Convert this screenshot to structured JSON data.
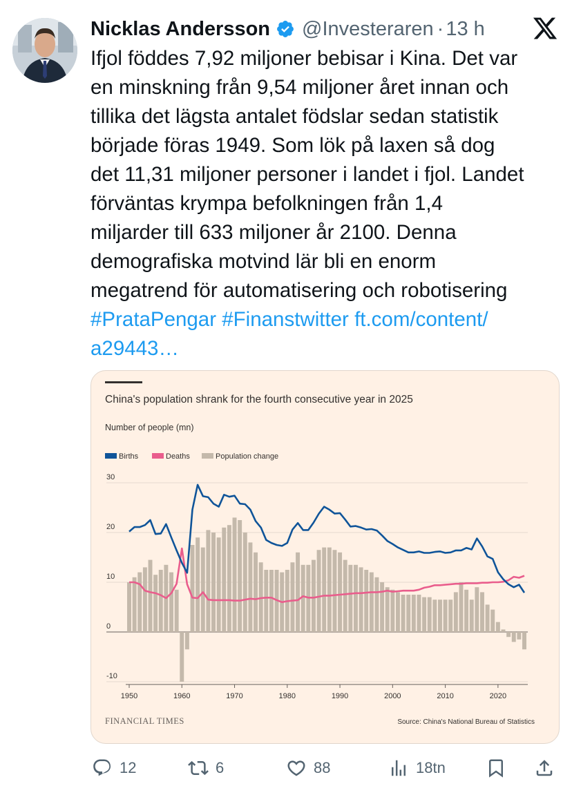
{
  "author": {
    "name": "Nicklas Andersson",
    "handle": "@Investeraren",
    "separator": "·",
    "time": "13 h"
  },
  "tweet": {
    "lines": [
      "Ifjol föddes 7,92 miljoner bebisar i Kina. Det var",
      "en minskning från 9,54 miljoner året innan och",
      "tillika det lägsta antalet födslar sedan statistik",
      "började föras 1949.  Som lök på laxen så dog",
      "det 11,31 miljoner personer i landet i fjol. Landet",
      "förväntas krympa befolkningen från 1,4",
      "miljarder till 633 miljoner år 2100. Denna",
      "demografiska motvind lär bli en enorm",
      "megatrend för automatisering och robotisering"
    ],
    "hashtag1": "#PrataPengar",
    "hashtag2": "#Finanstwitter",
    "link1": "ft.com/content/",
    "link2": "a29443…"
  },
  "chart_data": {
    "type": "bar+line",
    "title": "China's population shrank for the fourth consecutive year in 2025",
    "ylabel": "Number of people (mn)",
    "legend": [
      "Births",
      "Deaths",
      "Population change"
    ],
    "colors": {
      "Births": "#0f5499",
      "Deaths": "#e95d8c",
      "Population change": "#c4b9ab"
    },
    "ylim": [
      -10,
      30
    ],
    "yticks": [
      30,
      20,
      10,
      0,
      -10
    ],
    "xlim": [
      1950,
      2025
    ],
    "xticks": [
      1950,
      1960,
      1970,
      1980,
      1990,
      2000,
      2010,
      2020
    ],
    "source": "Source: China's National Bureau of Statistics",
    "publisher": "FINANCIAL TIMES",
    "years": [
      1950,
      1951,
      1952,
      1953,
      1954,
      1955,
      1956,
      1957,
      1958,
      1959,
      1960,
      1961,
      1962,
      1963,
      1964,
      1965,
      1966,
      1967,
      1968,
      1969,
      1970,
      1971,
      1972,
      1973,
      1974,
      1975,
      1976,
      1977,
      1978,
      1979,
      1980,
      1981,
      1982,
      1983,
      1984,
      1985,
      1986,
      1987,
      1988,
      1989,
      1990,
      1991,
      1992,
      1993,
      1994,
      1995,
      1996,
      1997,
      1998,
      1999,
      2000,
      2001,
      2002,
      2003,
      2004,
      2005,
      2006,
      2007,
      2008,
      2009,
      2010,
      2011,
      2012,
      2013,
      2014,
      2015,
      2016,
      2017,
      2018,
      2019,
      2020,
      2021,
      2022,
      2023,
      2024,
      2025
    ],
    "births": [
      20.2,
      21.1,
      21.1,
      21.5,
      22.5,
      19.7,
      19.8,
      21.7,
      19.0,
      16.4,
      13.9,
      11.9,
      24.6,
      29.6,
      27.3,
      27.1,
      25.8,
      25.2,
      27.6,
      27.2,
      27.4,
      25.8,
      25.7,
      24.6,
      22.3,
      21.0,
      18.5,
      17.9,
      17.5,
      17.3,
      17.9,
      20.6,
      21.9,
      20.5,
      20.5,
      22.0,
      23.8,
      25.2,
      24.6,
      23.8,
      23.9,
      22.6,
      21.2,
      21.3,
      21.0,
      20.6,
      20.7,
      20.4,
      19.4,
      18.3,
      17.7,
      17.0,
      16.5,
      16.0,
      16.0,
      16.2,
      15.9,
      15.9,
      16.1,
      16.2,
      15.9,
      16.0,
      16.4,
      16.4,
      16.9,
      16.6,
      18.8,
      17.2,
      15.2,
      14.7,
      12.0,
      10.6,
      9.6,
      9.0,
      9.5,
      7.9
    ],
    "deaths": [
      10.0,
      10.0,
      9.6,
      8.3,
      8.0,
      7.8,
      7.4,
      6.8,
      7.8,
      9.7,
      16.8,
      9.6,
      6.9,
      6.8,
      8.0,
      6.5,
      6.4,
      6.4,
      6.4,
      6.4,
      6.3,
      6.3,
      6.5,
      6.7,
      6.6,
      6.8,
      6.9,
      6.9,
      6.4,
      6.0,
      6.2,
      6.3,
      6.4,
      7.2,
      6.9,
      6.9,
      7.1,
      7.3,
      7.3,
      7.4,
      7.5,
      7.6,
      7.7,
      7.8,
      7.8,
      7.9,
      8.0,
      8.0,
      8.1,
      8.3,
      8.1,
      8.2,
      8.3,
      8.3,
      8.3,
      8.5,
      8.9,
      9.1,
      9.4,
      9.4,
      9.5,
      9.6,
      9.7,
      9.7,
      9.8,
      9.8,
      9.8,
      9.9,
      9.9,
      10.0,
      10.0,
      10.1,
      10.4,
      11.1,
      10.9,
      11.3
    ],
    "change": [
      10.0,
      11.0,
      12.0,
      13.0,
      14.5,
      11.5,
      12.5,
      13.5,
      12.0,
      8.5,
      -10.0,
      -3.5,
      17.5,
      19.0,
      17.0,
      20.5,
      20.0,
      19.0,
      21.0,
      21.5,
      23.0,
      22.5,
      20.0,
      18.0,
      16.0,
      14.0,
      12.5,
      12.5,
      12.5,
      12.0,
      12.5,
      14.0,
      16.0,
      13.5,
      13.5,
      14.5,
      16.5,
      17.0,
      17.0,
      16.5,
      16.0,
      14.5,
      13.5,
      13.5,
      13.0,
      12.5,
      12.0,
      11.0,
      10.0,
      9.0,
      8.5,
      8.0,
      7.5,
      7.5,
      7.5,
      7.5,
      7.0,
      7.0,
      6.5,
      6.5,
      6.5,
      6.5,
      8.0,
      10.0,
      8.5,
      6.5,
      9.0,
      8.0,
      5.5,
      4.5,
      2.0,
      0.5,
      -1.0,
      -2.0,
      -1.5,
      -3.5
    ]
  },
  "actions": {
    "replies": "12",
    "reposts": "6",
    "likes": "88",
    "views": "18tn"
  }
}
